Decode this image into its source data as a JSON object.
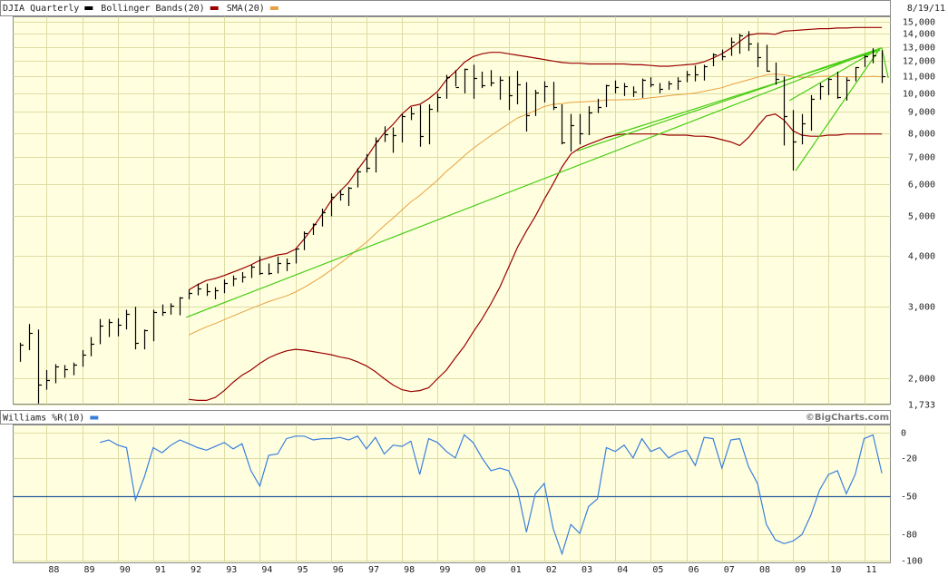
{
  "header": {
    "date": "8/19/11",
    "credit": "©BigCharts.com"
  },
  "chart_data": [
    {
      "type": "ohlc",
      "log_scale": true,
      "grid": true,
      "xlim": [
        1987.06,
        2011.74
      ],
      "ylim": [
        1733,
        15400
      ],
      "yticks": [
        {
          "value": 15000,
          "label": "15,000"
        },
        {
          "value": 14000,
          "label": "14,000"
        },
        {
          "value": 13000,
          "label": "13,000"
        },
        {
          "value": 12000,
          "label": "12,000"
        },
        {
          "value": 11000,
          "label": "11,000"
        },
        {
          "value": 10000,
          "label": "10,000"
        },
        {
          "value": 9000,
          "label": "9,000"
        },
        {
          "value": 8000,
          "label": "8,000"
        },
        {
          "value": 7000,
          "label": "7,000"
        },
        {
          "value": 6000,
          "label": "6,000"
        },
        {
          "value": 5000,
          "label": "5,000"
        },
        {
          "value": 4000,
          "label": "4,000"
        },
        {
          "value": 3000,
          "label": "3,000"
        },
        {
          "value": 2000,
          "label": "2,000"
        },
        {
          "value": 1733,
          "label": "1,733"
        }
      ],
      "x": [
        1987.25,
        1987.5,
        1987.75,
        1988,
        1988.25,
        1988.5,
        1988.75,
        1989,
        1989.25,
        1989.5,
        1989.75,
        1990,
        1990.25,
        1990.5,
        1990.75,
        1991,
        1991.25,
        1991.5,
        1991.75,
        1992,
        1992.25,
        1992.5,
        1992.75,
        1993,
        1993.25,
        1993.5,
        1993.75,
        1994,
        1994.25,
        1994.5,
        1994.75,
        1995,
        1995.25,
        1995.5,
        1995.75,
        1996,
        1996.25,
        1996.5,
        1996.75,
        1997,
        1997.25,
        1997.5,
        1997.75,
        1998,
        1998.25,
        1998.5,
        1998.75,
        1999,
        1999.25,
        1999.5,
        1999.75,
        2000,
        2000.25,
        2000.5,
        2000.75,
        2001,
        2001.25,
        2001.5,
        2001.75,
        2002,
        2002.25,
        2002.5,
        2002.75,
        2003,
        2003.25,
        2003.5,
        2003.75,
        2004,
        2004.25,
        2004.5,
        2004.75,
        2005,
        2005.25,
        2005.5,
        2005.75,
        2006,
        2006.25,
        2006.5,
        2006.75,
        2007,
        2007.25,
        2007.5,
        2007.75,
        2008,
        2008.25,
        2008.5,
        2008.75,
        2009,
        2009.25,
        2009.5,
        2009.75,
        2010,
        2010.25,
        2010.5,
        2010.75,
        2011,
        2011.25,
        2011.5
      ],
      "price": {
        "name": "DJIA Quarterly",
        "color": "#000000",
        "high": [
          2450,
          2722,
          2640,
          2100,
          2170,
          2160,
          2190,
          2350,
          2530,
          2800,
          2800,
          2810,
          2950,
          3000,
          2640,
          2950,
          3040,
          3060,
          3170,
          3300,
          3420,
          3420,
          3350,
          3500,
          3580,
          3650,
          3800,
          3990,
          3830,
          3980,
          3940,
          4160,
          4590,
          4800,
          5220,
          5690,
          5800,
          5900,
          6560,
          7100,
          7800,
          8300,
          8250,
          8900,
          9250,
          9370,
          9400,
          10000,
          11100,
          11400,
          11500,
          11750,
          11300,
          11400,
          11000,
          11000,
          11350,
          10650,
          10200,
          10700,
          10670,
          9400,
          8900,
          8900,
          9300,
          9700,
          10500,
          10750,
          10600,
          10400,
          10870,
          10950,
          10600,
          10720,
          10950,
          11350,
          11700,
          11750,
          12530,
          12800,
          13700,
          14000,
          14200,
          13300,
          13150,
          11900,
          11000,
          9100,
          8900,
          9900,
          10600,
          10900,
          11300,
          10950,
          11600,
          12400,
          12900,
          12750
        ],
        "low": [
          2200,
          2350,
          1739,
          1880,
          1950,
          2010,
          2040,
          2140,
          2270,
          2430,
          2530,
          2540,
          2640,
          2360,
          2360,
          2470,
          2850,
          2870,
          2860,
          3130,
          3200,
          3190,
          3130,
          3240,
          3370,
          3440,
          3530,
          3590,
          3590,
          3620,
          3670,
          3830,
          4130,
          4500,
          4720,
          5000,
          5460,
          5300,
          5880,
          6400,
          6400,
          7600,
          7150,
          7580,
          8600,
          7400,
          7500,
          9000,
          9700,
          10400,
          10000,
          9700,
          10300,
          10400,
          9650,
          9100,
          9400,
          8060,
          8800,
          9500,
          9100,
          7500,
          7200,
          7500,
          7900,
          8950,
          9250,
          10000,
          9850,
          9800,
          9750,
          10350,
          10000,
          10200,
          10200,
          10650,
          10700,
          10750,
          11650,
          12050,
          12350,
          12500,
          12700,
          11600,
          11300,
          10500,
          7450,
          6470,
          7500,
          8100,
          9650,
          9900,
          9700,
          9600,
          10700,
          11600,
          11850,
          10600
        ],
        "close": [
          2419,
          2596,
          1939,
          1988,
          2142,
          2113,
          2169,
          2293,
          2440,
          2693,
          2753,
          2707,
          2881,
          2453,
          2634,
          2914,
          2907,
          3017,
          3168,
          3236,
          3319,
          3272,
          3301,
          3436,
          3516,
          3555,
          3754,
          3636,
          3625,
          3843,
          3834,
          4158,
          4556,
          4789,
          5117,
          5587,
          5655,
          5882,
          6448,
          6584,
          7673,
          7945,
          7908,
          8800,
          8952,
          7843,
          9181,
          9786,
          10971,
          10337,
          11497,
          10922,
          10448,
          10651,
          10787,
          9879,
          10502,
          8848,
          10021,
          10404,
          9243,
          7592,
          8342,
          7992,
          8985,
          9275,
          10453,
          10357,
          10435,
          10080,
          10783,
          10503,
          10275,
          10569,
          10718,
          11109,
          11150,
          11679,
          12463,
          12354,
          13409,
          13896,
          13265,
          12263,
          11350,
          10851,
          8776,
          7609,
          8447,
          9712,
          10428,
          10857,
          9774,
          10788,
          11578,
          12320,
          12414,
          10990
        ]
      },
      "series": [
        {
          "name": "Bollinger Bands(20)",
          "color": "#990000",
          "upper": [
            null,
            null,
            null,
            null,
            null,
            null,
            null,
            null,
            null,
            null,
            null,
            null,
            null,
            null,
            null,
            null,
            null,
            null,
            null,
            3300,
            3400,
            3480,
            3520,
            3580,
            3650,
            3720,
            3800,
            3900,
            3960,
            4020,
            4050,
            4150,
            4400,
            4700,
            5050,
            5450,
            5750,
            6050,
            6500,
            6950,
            7500,
            8000,
            8400,
            8900,
            9300,
            9400,
            9700,
            10100,
            10800,
            11300,
            11900,
            12300,
            12500,
            12600,
            12600,
            12500,
            12400,
            12300,
            12200,
            12100,
            12000,
            11900,
            11850,
            11850,
            11800,
            11800,
            11800,
            11800,
            11800,
            11750,
            11750,
            11700,
            11650,
            11650,
            11700,
            11750,
            11800,
            11950,
            12200,
            12500,
            12900,
            13400,
            13900,
            14000,
            14000,
            13950,
            14200,
            14250,
            14300,
            14350,
            14400,
            14400,
            14450,
            14450,
            14500,
            14500,
            14500,
            14500
          ],
          "lower": [
            null,
            null,
            null,
            null,
            null,
            null,
            null,
            null,
            null,
            null,
            null,
            null,
            null,
            null,
            null,
            null,
            null,
            null,
            null,
            1780,
            1770,
            1770,
            1800,
            1870,
            1960,
            2040,
            2100,
            2180,
            2250,
            2300,
            2340,
            2360,
            2350,
            2330,
            2310,
            2290,
            2260,
            2240,
            2200,
            2150,
            2080,
            2000,
            1930,
            1880,
            1860,
            1870,
            1900,
            2000,
            2100,
            2250,
            2400,
            2600,
            2800,
            3050,
            3350,
            3750,
            4200,
            4600,
            5000,
            5500,
            6000,
            6600,
            7100,
            7350,
            7500,
            7650,
            7800,
            7900,
            7950,
            7950,
            7950,
            7950,
            7950,
            7900,
            7900,
            7900,
            7850,
            7850,
            7800,
            7700,
            7600,
            7450,
            7800,
            8300,
            8800,
            8900,
            8600,
            8100,
            7900,
            7850,
            7850,
            7900,
            7900,
            7950,
            7950,
            7950,
            7950,
            7950
          ]
        },
        {
          "name": "SMA(20)",
          "color": "#e8a040",
          "values": [
            null,
            null,
            null,
            null,
            null,
            null,
            null,
            null,
            null,
            null,
            null,
            null,
            null,
            null,
            null,
            null,
            null,
            null,
            null,
            2560,
            2620,
            2680,
            2730,
            2790,
            2850,
            2910,
            2970,
            3030,
            3090,
            3140,
            3190,
            3260,
            3350,
            3450,
            3560,
            3690,
            3830,
            3980,
            4150,
            4320,
            4530,
            4740,
            4950,
            5180,
            5420,
            5620,
            5870,
            6130,
            6440,
            6720,
            7030,
            7330,
            7600,
            7880,
            8150,
            8420,
            8700,
            8880,
            9080,
            9280,
            9400,
            9440,
            9500,
            9520,
            9550,
            9570,
            9640,
            9640,
            9650,
            9650,
            9700,
            9750,
            9800,
            9870,
            9920,
            9960,
            10020,
            10120,
            10220,
            10320,
            10500,
            10650,
            10800,
            10950,
            11100,
            11150,
            11100,
            11000,
            10950,
            10950,
            11000,
            11020,
            11000,
            10980,
            10970,
            10980,
            11010,
            10980
          ]
        }
      ],
      "trendlines": {
        "color": "#44cc11",
        "lines": [
          {
            "x": [
              1991.93,
              2011.42
            ],
            "y": [
              2827,
              12860
            ]
          },
          {
            "x": [
              2002.93,
              2011.5
            ],
            "y": [
              7230,
              12930
            ]
          },
          {
            "x": [
              2004.0,
              2011.45
            ],
            "y": [
              7950,
              12750
            ]
          },
          {
            "x": [
              2008.9,
              2011.45
            ],
            "y": [
              9600,
              12900
            ]
          },
          {
            "x": [
              2009.07,
              2011.45
            ],
            "y": [
              6460,
              12900
            ]
          },
          {
            "x": [
              2011.5,
              2011.68
            ],
            "y": [
              12900,
              10900
            ]
          }
        ]
      }
    },
    {
      "type": "line",
      "grid": true,
      "xlim": [
        1987.06,
        2011.74
      ],
      "ylim": [
        -102,
        5.7
      ],
      "yticks": [
        0,
        -20,
        -50,
        -80,
        -100
      ],
      "xticks": [
        {
          "value": 1988,
          "label": "88"
        },
        {
          "value": 1989,
          "label": "89"
        },
        {
          "value": 1990,
          "label": "90"
        },
        {
          "value": 1991,
          "label": "91"
        },
        {
          "value": 1992,
          "label": "92"
        },
        {
          "value": 1993,
          "label": "93"
        },
        {
          "value": 1994,
          "label": "94"
        },
        {
          "value": 1995,
          "label": "95"
        },
        {
          "value": 1996,
          "label": "96"
        },
        {
          "value": 1997,
          "label": "97"
        },
        {
          "value": 1998,
          "label": "98"
        },
        {
          "value": 1999,
          "label": "99"
        },
        {
          "value": 2000,
          "label": "00"
        },
        {
          "value": 2001,
          "label": "01"
        },
        {
          "value": 2002,
          "label": "02"
        },
        {
          "value": 2003,
          "label": "03"
        },
        {
          "value": 2004,
          "label": "04"
        },
        {
          "value": 2005,
          "label": "05"
        },
        {
          "value": 2006,
          "label": "06"
        },
        {
          "value": 2007,
          "label": "07"
        },
        {
          "value": 2008,
          "label": "08"
        },
        {
          "value": 2009,
          "label": "09"
        },
        {
          "value": 2010,
          "label": "10"
        },
        {
          "value": 2011,
          "label": "11"
        }
      ],
      "hline": {
        "value": -50,
        "color": "#2a5a9a"
      },
      "series": [
        {
          "name": "Williams %R(10)",
          "color": "#3a7fdd",
          "values": [
            null,
            null,
            null,
            null,
            null,
            null,
            null,
            null,
            null,
            -8,
            -6,
            -10,
            -12,
            -53,
            -35,
            -12,
            -16,
            -10,
            -6,
            -9,
            -12,
            -14,
            -11,
            -8,
            -13,
            -9,
            -30,
            -42,
            -18,
            -17,
            -5,
            -3,
            -3,
            -6,
            -5,
            -5,
            -4,
            -6,
            -3,
            -13,
            -4,
            -17,
            -10,
            -11,
            -7,
            -33,
            -5,
            -8,
            -15,
            -20,
            -2,
            -8,
            -20,
            -30,
            -28,
            -30,
            -45,
            -78,
            -48,
            -40,
            -75,
            -95,
            -72,
            -79,
            -58,
            -52,
            -12,
            -15,
            -10,
            -20,
            -5,
            -15,
            -12,
            -20,
            -16,
            -14,
            -26,
            -4,
            -5,
            -28,
            -6,
            -5,
            -27,
            -40,
            -72,
            -84,
            -87,
            -85,
            -80,
            -65,
            -45,
            -33,
            -30,
            -48,
            -33,
            -5,
            -2,
            -32
          ]
        }
      ]
    }
  ]
}
